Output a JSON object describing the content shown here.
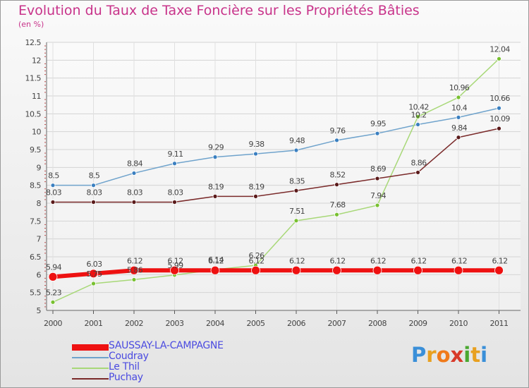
{
  "title": "Evolution du Taux de Taxe Foncière sur les Propriétés Bâties",
  "subtitle": "(en %)",
  "logo": {
    "text": "Proxiti",
    "letters": [
      "P",
      "r",
      "o",
      "x",
      "i",
      "t",
      "i"
    ],
    "colors": [
      "#3a8fd8",
      "#e8a020",
      "#f07a1a",
      "#d83a2a",
      "#4aa830",
      "#e8a020",
      "#3a8fd8"
    ]
  },
  "chart_data": {
    "type": "line",
    "x": [
      "2000",
      "2001",
      "2002",
      "2003",
      "2004",
      "2005",
      "2006",
      "2007",
      "2008",
      "2009",
      "2010",
      "2011"
    ],
    "ylim": [
      5,
      12.5
    ],
    "yticks": [
      "5",
      "5.5",
      "6",
      "6.5",
      "7",
      "7.5",
      "8",
      "8.5",
      "9",
      "9.5",
      "10",
      "10.5",
      "11",
      "11.5",
      "12",
      "12.5"
    ],
    "grid": true,
    "series": [
      {
        "name": "Coudray",
        "color": "#6fa3cc",
        "marker": "#3a7fc0",
        "width": 1.5,
        "radius": 3,
        "values": [
          8.5,
          8.5,
          8.84,
          9.11,
          9.29,
          9.38,
          9.48,
          9.76,
          9.95,
          10.2,
          10.4,
          10.66
        ],
        "labels": [
          "8.5",
          "8.5",
          "8.84",
          "9.11",
          "9.29",
          "9.38",
          "9.48",
          "9.76",
          "9.95",
          "10.2",
          "10.4",
          "10.66"
        ]
      },
      {
        "name": "Le Thil",
        "color": "#a8d878",
        "marker": "#78c030",
        "width": 1.5,
        "radius": 3,
        "values": [
          5.23,
          5.75,
          5.86,
          5.99,
          6.14,
          6.26,
          7.51,
          7.68,
          7.94,
          10.42,
          10.96,
          12.04
        ],
        "labels": [
          "5.23",
          "5.75",
          "5.86",
          "5.99",
          "6.14",
          "6.26",
          "7.51",
          "7.68",
          "7.94",
          "10.42",
          "10.96",
          "12.04"
        ]
      },
      {
        "name": "Puchay",
        "color": "#7a2a2a",
        "marker": "#5a1a1a",
        "width": 1.5,
        "radius": 3,
        "values": [
          8.03,
          8.03,
          8.03,
          8.03,
          8.19,
          8.19,
          8.35,
          8.52,
          8.69,
          8.86,
          9.84,
          10.09
        ],
        "labels": [
          "8.03",
          "8.03",
          "8.03",
          "8.03",
          "8.19",
          "8.19",
          "8.35",
          "8.52",
          "8.69",
          "8.86",
          "9.84",
          "10.09"
        ]
      },
      {
        "name": "SAUSSAY-LA-CAMPAGNE",
        "color": "#ee1111",
        "marker": "#ee1111",
        "width": 6,
        "radius": 6,
        "values": [
          5.94,
          6.03,
          6.12,
          6.12,
          6.12,
          6.12,
          6.12,
          6.12,
          6.12,
          6.12,
          6.12,
          6.12
        ],
        "labels": [
          "5.94",
          "6.03",
          "6.12",
          "6.12",
          "6.12",
          "6.12",
          "6.12",
          "6.12",
          "6.12",
          "6.12",
          "6.12",
          "6.12"
        ]
      }
    ],
    "legend_order": [
      "SAUSSAY-LA-CAMPAGNE",
      "Coudray",
      "Le Thil",
      "Puchay"
    ]
  }
}
